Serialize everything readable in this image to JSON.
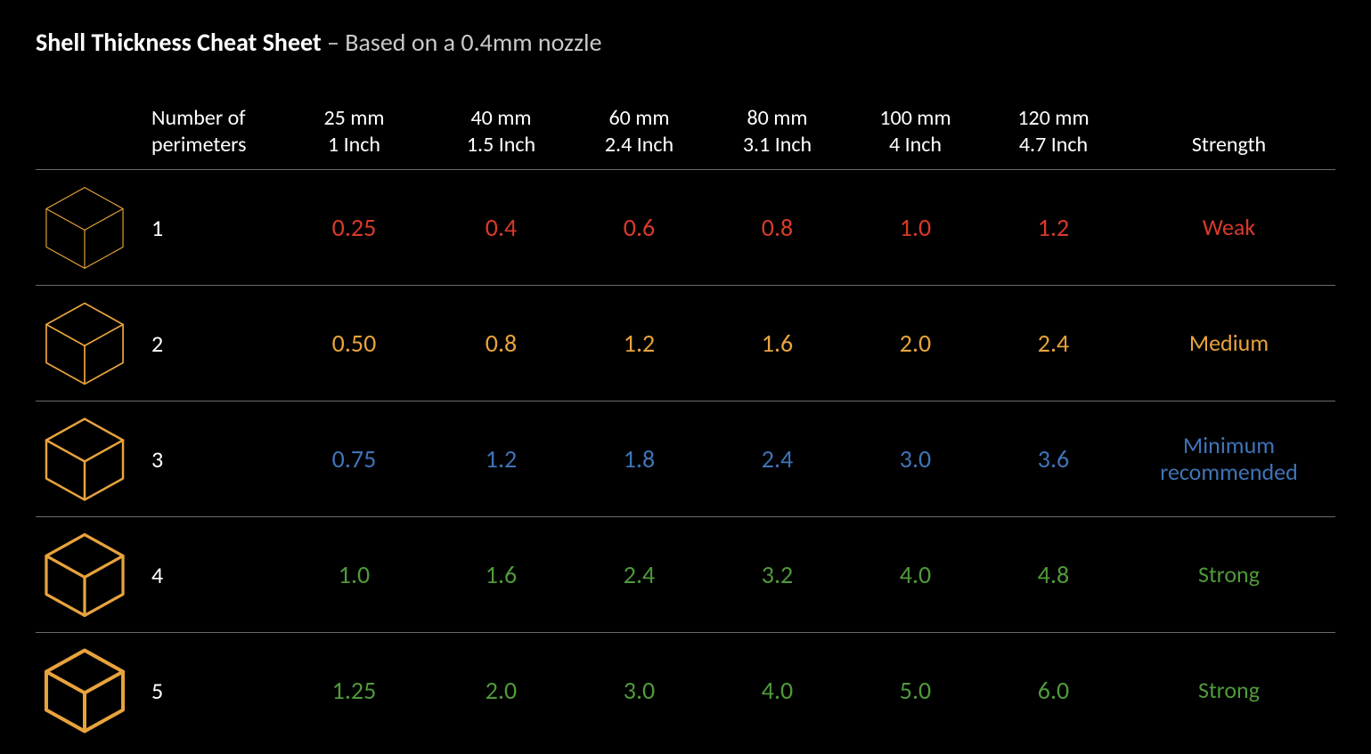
{
  "meta": {
    "background_color": "#000000",
    "text_color": "#ffffff",
    "subtitle_color": "#c9c9c9",
    "row_border_color": "#6a6a6a",
    "font_family": "Segoe UI, Calibri, Arial, sans-serif"
  },
  "title": "Shell Thickness Cheat Sheet",
  "subtitle": " – Based on a 0.4mm nozzle",
  "headers": {
    "perimeters": {
      "line1": "Number of",
      "line2": "perimeters"
    },
    "diameters": [
      {
        "top": "25 mm",
        "bottom": "1 Inch"
      },
      {
        "top": "40 mm",
        "bottom": "1.5 Inch"
      },
      {
        "top": "60 mm",
        "bottom": "2.4 Inch"
      },
      {
        "top": "80 mm",
        "bottom": "3.1 Inch"
      },
      {
        "top": "100 mm",
        "bottom": "4 Inch"
      },
      {
        "top": "120 mm",
        "bottom": "4.7 Inch"
      }
    ],
    "strength": "Strength"
  },
  "colors": {
    "weak": "#d83a2b",
    "medium": "#e8a33d",
    "minrec": "#3f74b8",
    "strong": "#4f9a3a",
    "cube": "#e8a33d"
  },
  "cube_stroke_widths": {
    "r1": 1.2,
    "r2": 1.8,
    "r3": 2.6,
    "r4": 3.4,
    "r5": 4.2
  },
  "rows": [
    {
      "perimeters": "1",
      "color_key": "weak",
      "values": [
        "0.25",
        "0.4",
        "0.6",
        "0.8",
        "1.0",
        "1.2"
      ],
      "strength": "Weak"
    },
    {
      "perimeters": "2",
      "color_key": "medium",
      "values": [
        "0.50",
        "0.8",
        "1.2",
        "1.6",
        "2.0",
        "2.4"
      ],
      "strength": "Medium"
    },
    {
      "perimeters": "3",
      "color_key": "minrec",
      "values": [
        "0.75",
        "1.2",
        "1.8",
        "2.4",
        "3.0",
        "3.6"
      ],
      "strength": "Minimum recommended"
    },
    {
      "perimeters": "4",
      "color_key": "strong",
      "values": [
        "1.0",
        "1.6",
        "2.4",
        "3.2",
        "4.0",
        "4.8"
      ],
      "strength": "Strong"
    },
    {
      "perimeters": "5",
      "color_key": "strong",
      "values": [
        "1.25",
        "2.0",
        "3.0",
        "4.0",
        "5.0",
        "6.0"
      ],
      "strength": "Strong"
    }
  ]
}
